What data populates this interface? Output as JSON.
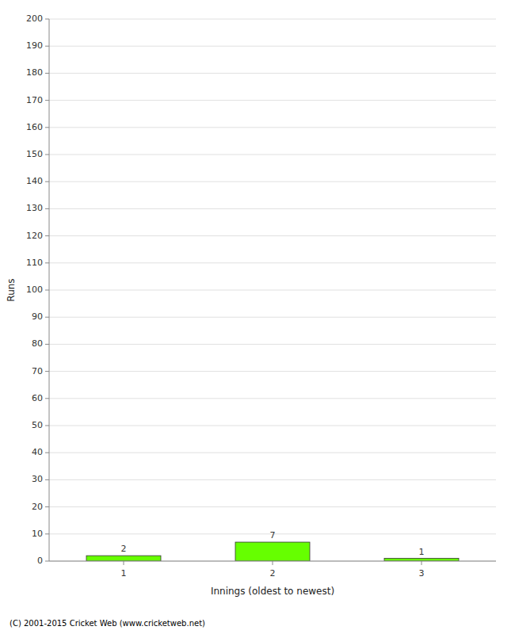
{
  "chart_data": {
    "type": "bar",
    "xlabel": "Innings (oldest to newest)",
    "ylabel": "Runs",
    "categories": [
      1,
      2,
      3
    ],
    "values": [
      2,
      7,
      1
    ],
    "color": "#66ff00",
    "ylim": [
      0,
      200
    ],
    "yticks": [
      0,
      10,
      20,
      30,
      40,
      50,
      60,
      70,
      80,
      90,
      100,
      110,
      120,
      130,
      140,
      150,
      160,
      170,
      180,
      190,
      200
    ],
    "grid": true,
    "data_labels": true,
    "annotations": [
      "(C) 2001-2015 Cricket Web (www.cricketweb.net)"
    ]
  }
}
